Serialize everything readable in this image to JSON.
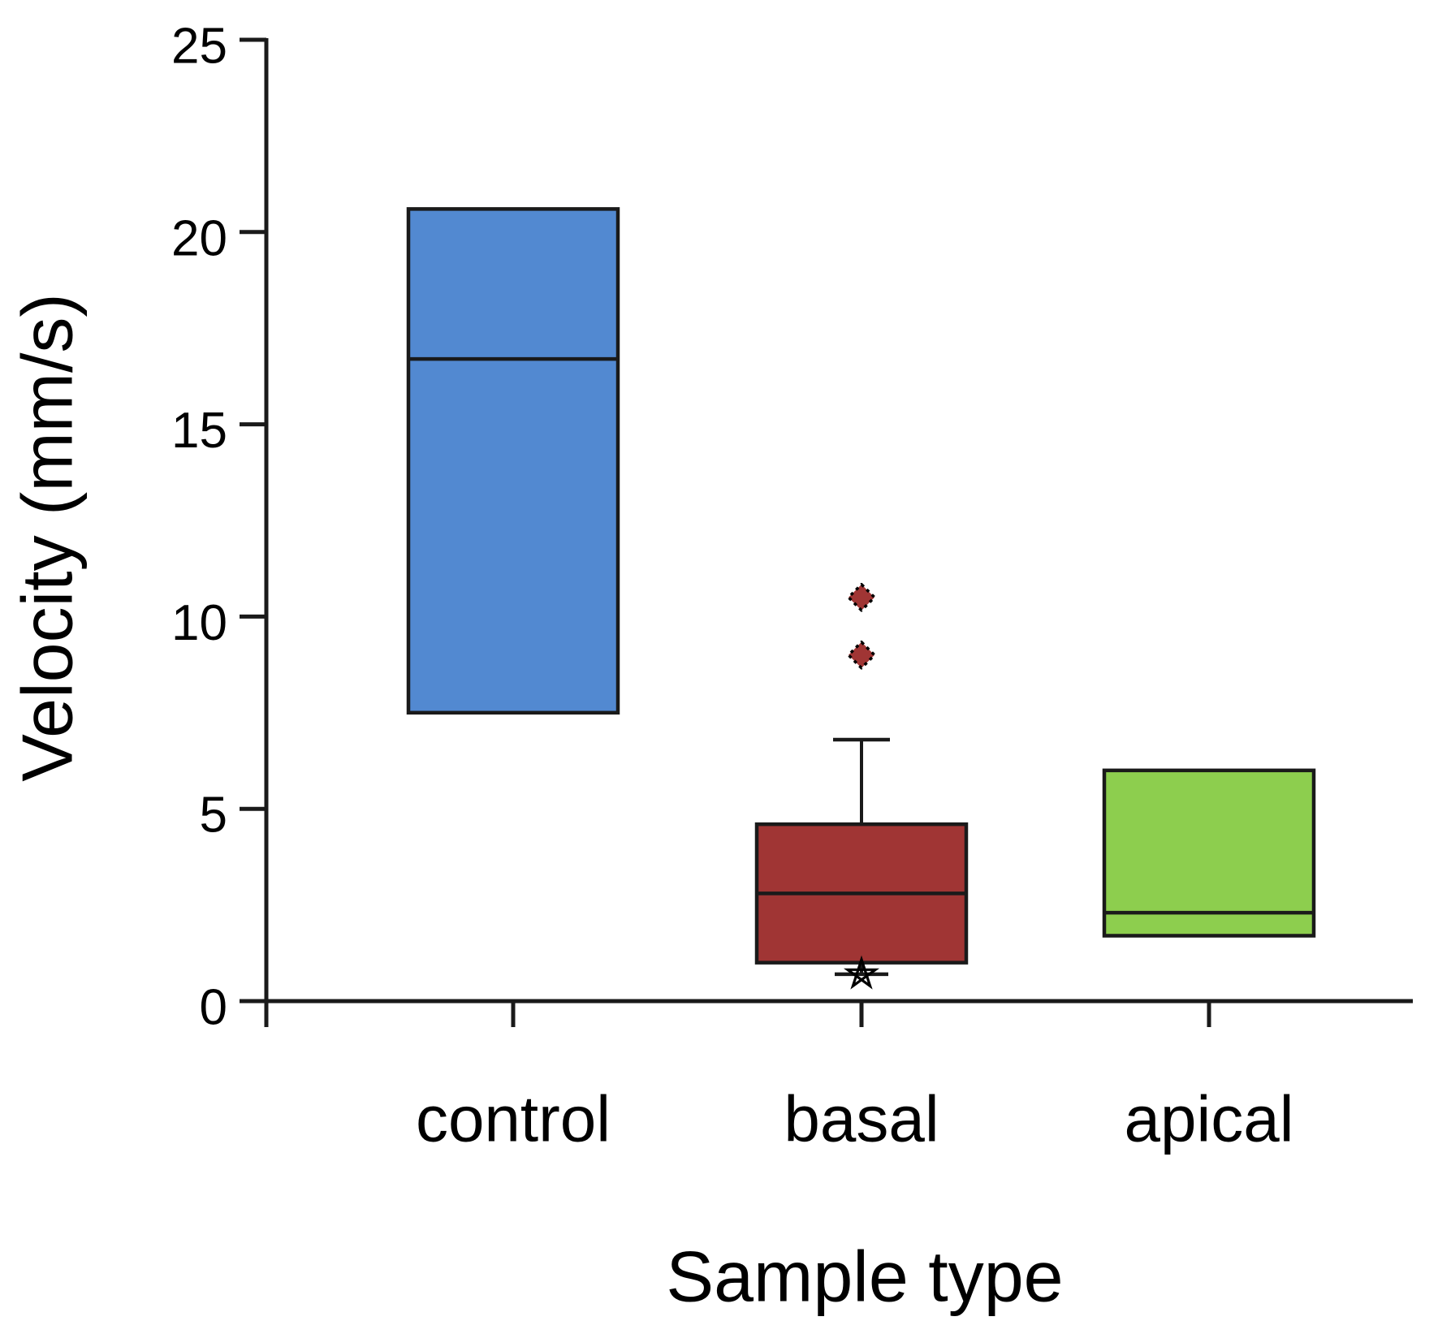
{
  "figure": {
    "background": "#ffffff"
  },
  "chart_data": {
    "type": "boxplot",
    "title": "",
    "xlabel": "Sample type",
    "ylabel": "Velocity (mm/s)",
    "ylim": [
      0,
      25
    ],
    "yticks": [
      0,
      5,
      10,
      15,
      20,
      25
    ],
    "grid": false,
    "legend": false,
    "categories": [
      "control",
      "basal",
      "apical"
    ],
    "series": [
      {
        "name": "control",
        "box_color": "#5289D1",
        "q1": 7.5,
        "median": 16.7,
        "q3": 20.6,
        "whisker_low": null,
        "whisker_high": null,
        "outliers": [],
        "extreme_low_marker": null
      },
      {
        "name": "basal",
        "box_color": "#A03534",
        "q1": 1.0,
        "median": 2.8,
        "q3": 4.6,
        "whisker_low": 0.7,
        "whisker_high": 6.8,
        "outliers": [
          10.5,
          9.0
        ],
        "extreme_low_marker": 0.7
      },
      {
        "name": "apical",
        "box_color": "#8DCE4E",
        "q1": 1.7,
        "median": 2.3,
        "q3": 6.0,
        "whisker_low": null,
        "whisker_high": null,
        "outliers": [],
        "extreme_low_marker": null
      }
    ],
    "outlier_marker": "diamond",
    "extreme_marker": "open-star",
    "marker_fill": "#A03534",
    "axis_color": "#1a1a1a",
    "text_color": "#000000"
  }
}
